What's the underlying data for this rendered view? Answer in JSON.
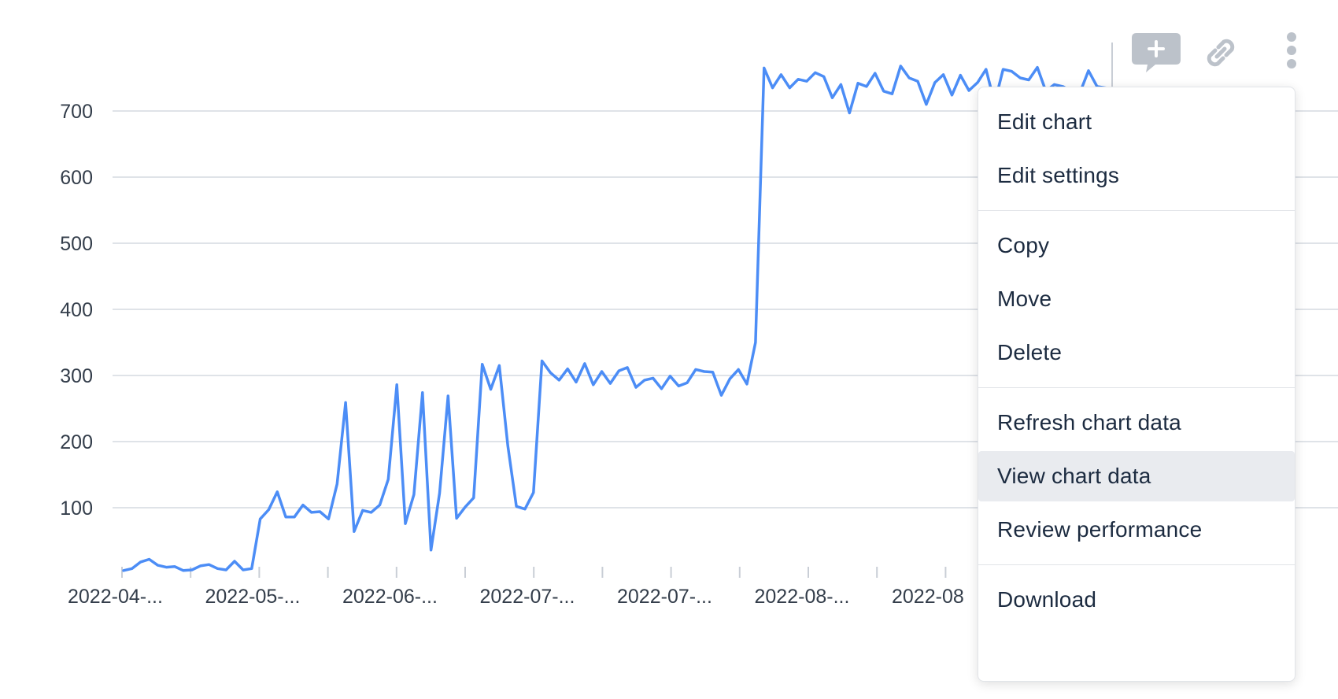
{
  "chart_data": {
    "type": "line",
    "color": "#4c8df6",
    "title": "",
    "xlabel": "",
    "ylabel": "",
    "ylim": [
      0,
      700
    ],
    "yticks": [
      100,
      200,
      300,
      400,
      500,
      600,
      700
    ],
    "x_tick_labels": [
      "2022-04-...",
      "2022-05-...",
      "2022-06-...",
      "2022-07-...",
      "2022-07-...",
      "2022-08-...",
      "2022-08"
    ],
    "grid": true,
    "series": [
      {
        "values": [
          5,
          8,
          18,
          22,
          13,
          10,
          11,
          5,
          6,
          12,
          14,
          8,
          6,
          19,
          6,
          8,
          83,
          97,
          124,
          86,
          86,
          104,
          93,
          94,
          83,
          136,
          259,
          64,
          96,
          93,
          104,
          143,
          286,
          76,
          120,
          274,
          36,
          122,
          269,
          84,
          101,
          115,
          317,
          279,
          315,
          193,
          102,
          98,
          123,
          322,
          304,
          293,
          310,
          290,
          318,
          286,
          306,
          288,
          307,
          312,
          282,
          293,
          296,
          280,
          299,
          284,
          289,
          309,
          306,
          305,
          270,
          295,
          309,
          287,
          350,
          765,
          735,
          755,
          735,
          748,
          745,
          758,
          752,
          720,
          740,
          697,
          742,
          737,
          757,
          730,
          726,
          768,
          750,
          745,
          710,
          743,
          755,
          724,
          754,
          731,
          743,
          763,
          712,
          763,
          760,
          750,
          747,
          766,
          730,
          740,
          737,
          730,
          728,
          761,
          737,
          735
        ]
      }
    ]
  },
  "toolbar": {
    "comment_icon": "add-comment-icon",
    "link_icon": "link-icon",
    "more_icon": "more-vertical-icon"
  },
  "menu": {
    "items": [
      {
        "label": "Edit chart"
      },
      {
        "label": "Edit settings"
      },
      {
        "label": "Copy"
      },
      {
        "label": "Move"
      },
      {
        "label": "Delete"
      },
      {
        "label": "Refresh chart data"
      },
      {
        "label": "View chart data",
        "highlighted": true
      },
      {
        "label": "Review performance"
      },
      {
        "label": "Download"
      }
    ]
  }
}
